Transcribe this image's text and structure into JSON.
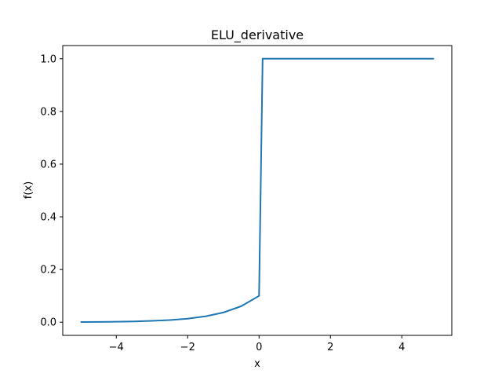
{
  "chart_data": {
    "type": "line",
    "title": "ELU_derivative",
    "xlabel": "x",
    "ylabel": "f(x)",
    "xlim": [
      -5.5,
      5.4
    ],
    "ylim": [
      -0.05,
      1.05
    ],
    "xticks": [
      -4,
      -2,
      0,
      2,
      4
    ],
    "yticks": [
      0.0,
      0.2,
      0.4,
      0.6,
      0.8,
      1.0
    ],
    "xtick_labels": [
      "−4",
      "−2",
      "0",
      "2",
      "4"
    ],
    "ytick_labels": [
      "0.0",
      "0.2",
      "0.4",
      "0.6",
      "0.8",
      "1.0"
    ],
    "grid": false,
    "legend": "none",
    "series": [
      {
        "color": "#1f77b4",
        "x": [
          -5.0,
          -4.5,
          -4.0,
          -3.5,
          -3.0,
          -2.5,
          -2.0,
          -1.5,
          -1.0,
          -0.5,
          0.0,
          0.1,
          0.5,
          1.0,
          1.5,
          2.0,
          2.5,
          3.0,
          3.5,
          4.0,
          4.5,
          4.9
        ],
        "values": [
          0.0007,
          0.0011,
          0.0018,
          0.003,
          0.005,
          0.0082,
          0.0135,
          0.0223,
          0.0368,
          0.0607,
          0.1,
          1.0,
          1.0,
          1.0,
          1.0,
          1.0,
          1.0,
          1.0,
          1.0,
          1.0,
          1.0,
          1.0
        ]
      }
    ]
  }
}
